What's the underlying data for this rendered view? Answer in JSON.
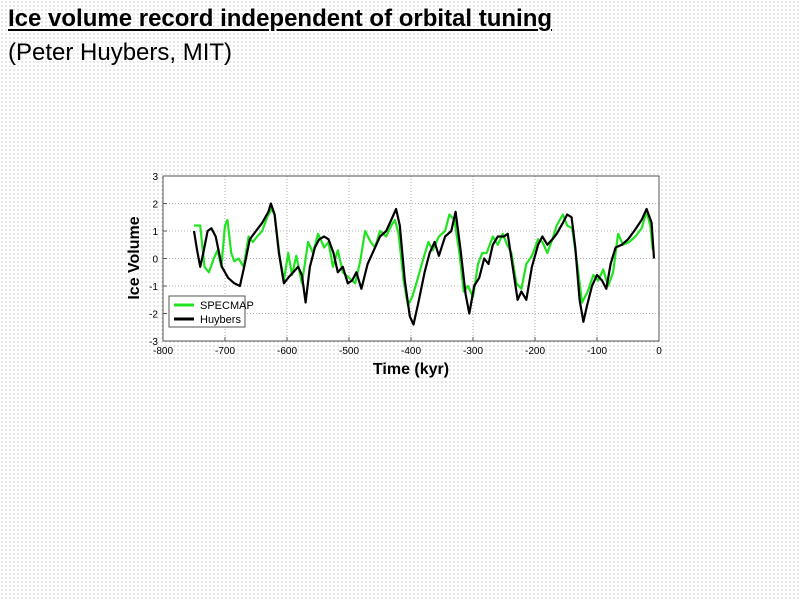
{
  "slide": {
    "title": "Ice volume record independent of orbital tuning",
    "subtitle": "(Peter Huybers, MIT)"
  },
  "colors": {
    "specmap": "#22e322",
    "huybers": "#000000",
    "grid": "#9a9a9a",
    "axes": "#555555"
  },
  "chart_data": {
    "type": "line",
    "title": "",
    "xlabel": "Time (kyr)",
    "ylabel": "Ice Volume",
    "xlim": [
      -800,
      0
    ],
    "ylim": [
      -3,
      3
    ],
    "xticks": [
      -800,
      -700,
      -600,
      -500,
      -400,
      -300,
      -200,
      -100,
      0
    ],
    "yticks": [
      3,
      2,
      1,
      0,
      -1,
      -2,
      -3
    ],
    "grid": true,
    "legend_position": "lower left",
    "series": [
      {
        "name": "SPECMAP",
        "color": "#22e322",
        "x": [
          -750,
          -740,
          -733,
          -726,
          -718,
          -712,
          -706,
          -700,
          -696,
          -690,
          -685,
          -678,
          -670,
          -662,
          -655,
          -648,
          -640,
          -632,
          -625,
          -620,
          -612,
          -605,
          -598,
          -592,
          -585,
          -576,
          -566,
          -558,
          -550,
          -540,
          -533,
          -526,
          -518,
          -510,
          -500,
          -490,
          -482,
          -474,
          -465,
          -458,
          -450,
          -440,
          -432,
          -426,
          -420,
          -412,
          -405,
          -398,
          -390,
          -380,
          -372,
          -365,
          -355,
          -345,
          -338,
          -330,
          -322,
          -315,
          -308,
          -300,
          -292,
          -285,
          -278,
          -268,
          -260,
          -252,
          -245,
          -238,
          -230,
          -222,
          -214,
          -205,
          -195,
          -188,
          -180,
          -172,
          -165,
          -155,
          -148,
          -140,
          -132,
          -124,
          -115,
          -106,
          -98,
          -90,
          -82,
          -74,
          -66,
          -58,
          -48,
          -38,
          -28,
          -20,
          -14,
          -10
        ],
        "y": [
          1.2,
          1.2,
          -0.3,
          -0.5,
          0.0,
          0.3,
          -0.3,
          1.2,
          1.4,
          0.2,
          -0.1,
          0.0,
          -0.3,
          0.8,
          0.6,
          0.8,
          1.0,
          1.5,
          1.8,
          1.6,
          0.1,
          -0.8,
          0.2,
          -0.6,
          0.1,
          -0.9,
          0.6,
          0.2,
          0.9,
          0.4,
          0.6,
          -0.3,
          0.3,
          -0.5,
          -0.7,
          -0.9,
          -0.1,
          1.0,
          0.6,
          0.4,
          1.0,
          0.8,
          1.2,
          1.4,
          0.9,
          -0.8,
          -1.7,
          -1.4,
          -0.8,
          0.0,
          0.6,
          0.3,
          0.8,
          1.0,
          1.6,
          1.4,
          0.2,
          -1.2,
          -1.0,
          -1.4,
          -0.2,
          0.2,
          0.2,
          0.8,
          0.5,
          0.9,
          0.5,
          0.2,
          -0.9,
          -1.1,
          -0.2,
          0.1,
          0.7,
          0.6,
          0.2,
          0.7,
          1.2,
          1.6,
          1.2,
          1.1,
          -0.2,
          -1.6,
          -1.2,
          -0.6,
          -0.8,
          -0.4,
          -1.0,
          -0.5,
          0.9,
          0.5,
          0.6,
          0.8,
          1.1,
          1.7,
          1.2,
          0.3
        ]
      },
      {
        "name": "Huybers",
        "color": "#000000",
        "x": [
          -750,
          -745,
          -740,
          -735,
          -728,
          -722,
          -715,
          -705,
          -695,
          -685,
          -676,
          -668,
          -660,
          -650,
          -640,
          -630,
          -626,
          -620,
          -613,
          -605,
          -598,
          -590,
          -582,
          -576,
          -570,
          -563,
          -555,
          -548,
          -540,
          -533,
          -525,
          -518,
          -510,
          -502,
          -495,
          -488,
          -480,
          -470,
          -460,
          -450,
          -440,
          -432,
          -424,
          -418,
          -410,
          -402,
          -396,
          -388,
          -378,
          -370,
          -362,
          -355,
          -345,
          -335,
          -328,
          -320,
          -312,
          -306,
          -298,
          -290,
          -282,
          -275,
          -268,
          -260,
          -250,
          -244,
          -236,
          -228,
          -222,
          -214,
          -205,
          -195,
          -188,
          -180,
          -172,
          -165,
          -155,
          -148,
          -141,
          -135,
          -128,
          -122,
          -116,
          -108,
          -100,
          -92,
          -85,
          -78,
          -70,
          -60,
          -50,
          -40,
          -28,
          -20,
          -12,
          -8
        ],
        "y": [
          1.0,
          0.3,
          -0.3,
          0.2,
          1.0,
          1.1,
          0.8,
          -0.3,
          -0.7,
          -0.9,
          -1.0,
          -0.2,
          0.7,
          1.0,
          1.3,
          1.7,
          2.0,
          1.6,
          0.2,
          -0.9,
          -0.7,
          -0.5,
          -0.3,
          -0.6,
          -1.6,
          -0.3,
          0.4,
          0.7,
          0.8,
          0.7,
          0.2,
          -0.5,
          -0.3,
          -0.9,
          -0.8,
          -0.5,
          -1.1,
          -0.2,
          0.3,
          0.8,
          1.0,
          1.4,
          1.8,
          1.2,
          -0.8,
          -2.1,
          -2.4,
          -1.6,
          -0.5,
          0.2,
          0.6,
          0.1,
          0.8,
          1.0,
          1.7,
          0.3,
          -1.3,
          -2.0,
          -1.0,
          -0.7,
          0.0,
          -0.2,
          0.5,
          0.8,
          0.8,
          0.9,
          -0.3,
          -1.5,
          -1.2,
          -1.5,
          -0.3,
          0.5,
          0.8,
          0.5,
          0.7,
          0.9,
          1.3,
          1.6,
          1.5,
          0.4,
          -1.5,
          -2.3,
          -1.7,
          -1.0,
          -0.6,
          -0.8,
          -1.1,
          -0.2,
          0.4,
          0.5,
          0.7,
          1.0,
          1.4,
          1.8,
          1.3,
          0.0
        ]
      }
    ]
  }
}
